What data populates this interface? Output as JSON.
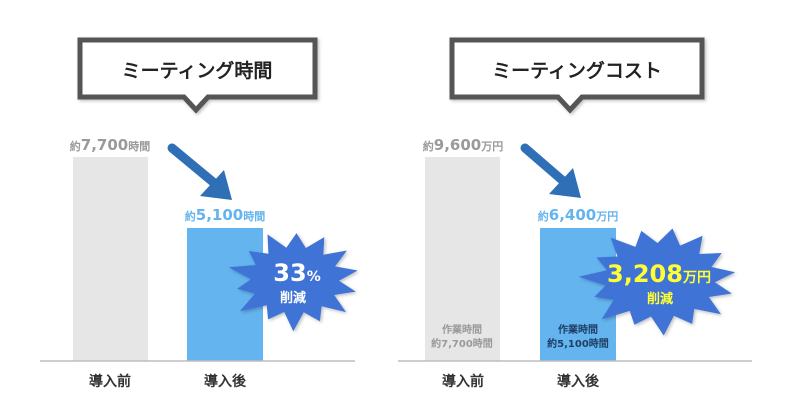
{
  "colors": {
    "before_bar": "#e6e6e6",
    "after_bar": "#63b4ef",
    "burst": "#3f73d6",
    "arrow": "#2f6fb6",
    "label_gray": "#9a9a9a",
    "label_blue": "#63b4ef",
    "burst_text_left": "#ffffff",
    "burst_text_right": "#ffff33",
    "axis": "#bdbdbd",
    "title_border": "#3a3a3a"
  },
  "panels": [
    {
      "title": "ミーティング時間",
      "before_label": {
        "prefix": "約",
        "value": "7,700",
        "unit": "時間"
      },
      "after_label": {
        "prefix": "約",
        "value": "5,100",
        "unit": "時間"
      },
      "burst": {
        "main": "33",
        "main_unit": "%",
        "sub": "削減"
      },
      "x_labels": [
        "導入前",
        "導入後"
      ],
      "inner_labels": null
    },
    {
      "title": "ミーティングコスト",
      "before_label": {
        "prefix": "約",
        "value": "9,600",
        "unit": "万円"
      },
      "after_label": {
        "prefix": "約",
        "value": "6,400",
        "unit": "万円"
      },
      "burst": {
        "main": "3,208",
        "main_unit": "万円",
        "sub": "削減"
      },
      "x_labels": [
        "導入前",
        "導入後"
      ],
      "inner_labels": {
        "before": [
          "作業時間",
          "約7,700時間"
        ],
        "after": [
          "作業時間",
          "約5,100時間"
        ]
      }
    }
  ],
  "chart_data": [
    {
      "type": "bar",
      "title": "ミーティング時間",
      "categories": [
        "導入前",
        "導入後"
      ],
      "values": [
        7700,
        5100
      ],
      "unit": "時間",
      "annotation": "33% 削減"
    },
    {
      "type": "bar",
      "title": "ミーティングコスト",
      "categories": [
        "導入前",
        "導入後"
      ],
      "values": [
        9600,
        6400
      ],
      "unit": "万円",
      "annotation": "3,208万円 削減"
    }
  ]
}
